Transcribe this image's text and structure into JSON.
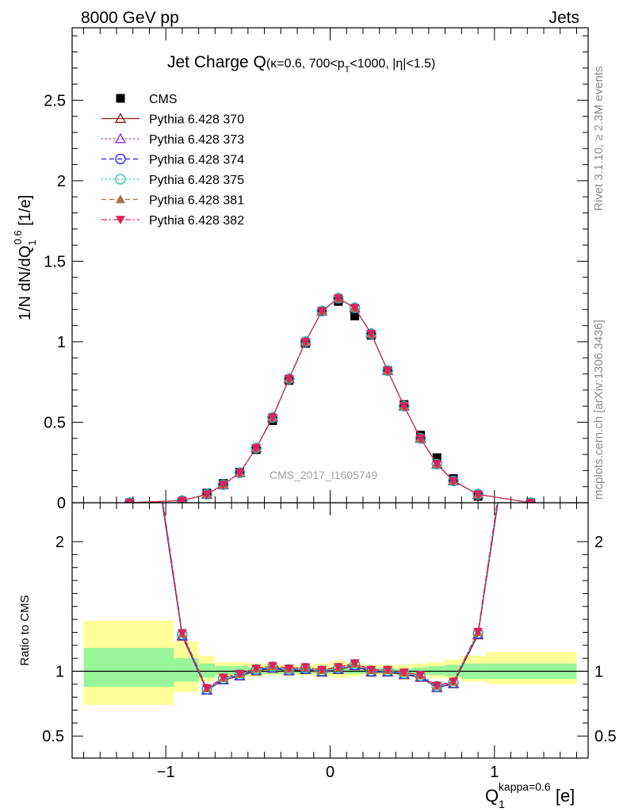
{
  "header": {
    "left": "8000 GeV pp",
    "right": "Jets"
  },
  "side_labels": {
    "rivet": "Rivet 3.1.10, ≥ 2.3M events",
    "mcplots": "mcplots.cern.ch [arXiv:1306.3436]"
  },
  "watermark": "CMS_2017_I1605749",
  "chart_data": [
    {
      "type": "scatter",
      "title_main": "Jet Charge Q",
      "title_sub": "(κ=0.6, 700<p",
      "title_sub_T": "T",
      "title_sub_end": "<1000, |η|<1.5)",
      "ylabel_a": "1/N dN/dQ",
      "ylabel_sub": "1",
      "ylabel_sup": "0.6",
      "ylabel_b": " [1/e]",
      "xlim": [
        -1.57,
        1.57
      ],
      "ylim": [
        0,
        2.95
      ],
      "y_ticks": [
        0,
        0.5,
        1,
        1.5,
        2,
        2.5
      ],
      "y_tick_labels": [
        "0",
        "0.5",
        "1",
        "1.5",
        "2",
        "2.5"
      ],
      "x": [
        -1.22,
        -0.9,
        -0.75,
        -0.65,
        -0.55,
        -0.45,
        -0.35,
        -0.25,
        -0.15,
        -0.05,
        0.05,
        0.15,
        0.25,
        0.35,
        0.45,
        0.55,
        0.65,
        0.75,
        0.9,
        1.22
      ],
      "series": [
        {
          "name": "CMS",
          "color": "#000000",
          "marker": "square",
          "line": "none",
          "values": [
            0.0,
            0.01,
            0.06,
            0.12,
            0.19,
            0.33,
            0.51,
            0.76,
            0.99,
            1.19,
            1.25,
            1.16,
            1.04,
            0.82,
            0.61,
            0.42,
            0.28,
            0.15,
            0.04,
            0.0
          ]
        },
        {
          "name": "Pythia 6.428 370",
          "color": "#8b1a1a",
          "marker": "triangle-open",
          "line": "solid",
          "values": [
            0.0,
            0.013,
            0.052,
            0.112,
            0.186,
            0.34,
            0.53,
            0.77,
            1.0,
            1.19,
            1.27,
            1.21,
            1.05,
            0.82,
            0.6,
            0.4,
            0.24,
            0.135,
            0.052,
            0.0
          ]
        },
        {
          "name": "Pythia 6.428 373",
          "color": "#8a2be2",
          "marker": "triangle-open",
          "line": "dotted",
          "values": [
            0.0,
            0.013,
            0.052,
            0.112,
            0.186,
            0.34,
            0.53,
            0.77,
            1.0,
            1.19,
            1.27,
            1.21,
            1.05,
            0.82,
            0.6,
            0.4,
            0.24,
            0.135,
            0.052,
            0.0
          ]
        },
        {
          "name": "Pythia 6.428 374",
          "color": "#1a1aff",
          "marker": "circle-open",
          "line": "dashed",
          "values": [
            0.0,
            0.013,
            0.053,
            0.113,
            0.186,
            0.34,
            0.53,
            0.77,
            1.0,
            1.19,
            1.27,
            1.21,
            1.05,
            0.82,
            0.6,
            0.4,
            0.24,
            0.136,
            0.053,
            0.0
          ]
        },
        {
          "name": "Pythia 6.428 375",
          "color": "#20c0b0",
          "marker": "circle-open",
          "line": "dotted",
          "values": [
            0.0,
            0.013,
            0.052,
            0.112,
            0.186,
            0.34,
            0.53,
            0.77,
            1.0,
            1.19,
            1.27,
            1.21,
            1.05,
            0.82,
            0.6,
            0.4,
            0.24,
            0.135,
            0.052,
            0.0
          ]
        },
        {
          "name": "Pythia 6.428 381",
          "color": "#b07040",
          "marker": "triangle-filled",
          "line": "dashed",
          "values": [
            0.0,
            0.013,
            0.052,
            0.112,
            0.186,
            0.34,
            0.53,
            0.77,
            1.0,
            1.19,
            1.27,
            1.21,
            1.05,
            0.82,
            0.6,
            0.4,
            0.24,
            0.135,
            0.052,
            0.0
          ]
        },
        {
          "name": "Pythia 6.428 382",
          "color": "#e0205a",
          "marker": "triangle-down-filled",
          "line": "dashdot",
          "values": [
            0.0,
            0.013,
            0.052,
            0.112,
            0.186,
            0.34,
            0.53,
            0.77,
            1.0,
            1.19,
            1.27,
            1.21,
            1.05,
            0.82,
            0.6,
            0.4,
            0.24,
            0.135,
            0.052,
            0.0
          ]
        }
      ]
    },
    {
      "type": "line",
      "ylabel": "Ratio to CMS",
      "xlabel_main": "Q",
      "xlabel_sub": "1",
      "xlabel_sup": "kappa=0.6",
      "xlabel_unit": " [e]",
      "xlim": [
        -1.57,
        1.57
      ],
      "ylim": [
        0.33,
        2.3
      ],
      "x_ticks": [
        -1,
        0,
        1
      ],
      "x_tick_labels": [
        "−1",
        "0",
        "1"
      ],
      "y_ticks": [
        0.5,
        1,
        2
      ],
      "y_tick_labels": [
        "0.5",
        "1",
        "2"
      ],
      "reference_line": 1,
      "x": [
        -1.22,
        -0.9,
        -0.75,
        -0.65,
        -0.55,
        -0.45,
        -0.35,
        -0.25,
        -0.15,
        -0.05,
        0.05,
        0.15,
        0.25,
        0.35,
        0.45,
        0.55,
        0.65,
        0.75,
        0.9,
        1.22
      ],
      "values": [
        4.0,
        1.28,
        0.86,
        0.94,
        0.97,
        1.01,
        1.03,
        1.01,
        1.02,
        1.0,
        1.02,
        1.05,
        1.0,
        1.0,
        0.98,
        0.96,
        0.88,
        0.91,
        1.29,
        4.0
      ],
      "band_edges": [
        -1.5,
        -0.95,
        -0.8,
        -0.7,
        -0.6,
        -0.5,
        -0.4,
        -0.3,
        -0.2,
        -0.1,
        0.0,
        0.1,
        0.2,
        0.3,
        0.4,
        0.5,
        0.6,
        0.7,
        0.8,
        0.95,
        1.5
      ],
      "band_stat": [
        [
          0.88,
          1.18
        ],
        [
          0.92,
          1.1
        ],
        [
          0.95,
          1.06
        ],
        [
          0.97,
          1.04
        ],
        [
          0.97,
          1.04
        ],
        [
          0.98,
          1.03
        ],
        [
          0.98,
          1.03
        ],
        [
          0.98,
          1.02
        ],
        [
          0.98,
          1.02
        ],
        [
          0.98,
          1.02
        ],
        [
          0.98,
          1.03
        ],
        [
          0.98,
          1.03
        ],
        [
          0.98,
          1.02
        ],
        [
          0.98,
          1.02
        ],
        [
          0.98,
          1.02
        ],
        [
          0.98,
          1.03
        ],
        [
          0.97,
          1.04
        ],
        [
          0.96,
          1.05
        ],
        [
          0.94,
          1.06
        ],
        [
          0.94,
          1.06
        ]
      ],
      "band_total": [
        [
          0.74,
          1.39
        ],
        [
          0.84,
          1.23
        ],
        [
          0.92,
          1.12
        ],
        [
          0.95,
          1.07
        ],
        [
          0.95,
          1.07
        ],
        [
          0.96,
          1.06
        ],
        [
          0.97,
          1.06
        ],
        [
          0.97,
          1.05
        ],
        [
          0.97,
          1.05
        ],
        [
          0.96,
          1.06
        ],
        [
          0.95,
          1.08
        ],
        [
          0.96,
          1.07
        ],
        [
          0.97,
          1.05
        ],
        [
          0.97,
          1.05
        ],
        [
          0.97,
          1.05
        ],
        [
          0.96,
          1.06
        ],
        [
          0.95,
          1.07
        ],
        [
          0.94,
          1.09
        ],
        [
          0.92,
          1.12
        ],
        [
          0.9,
          1.15
        ]
      ],
      "colors": {
        "stat_band": "#99f599",
        "total_band": "#ffff99"
      }
    }
  ]
}
